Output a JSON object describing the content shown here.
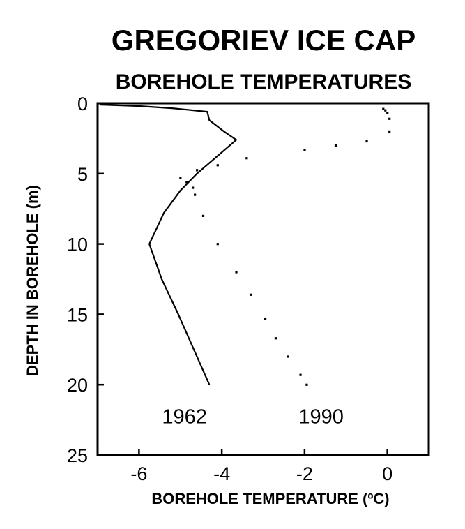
{
  "chart_data": {
    "type": "line",
    "title": "GREGORIEV ICE CAP",
    "subtitle": "BOREHOLE TEMPERATURES",
    "xlabel": "BOREHOLE TEMPERATURE (ºC)",
    "ylabel": "DEPTH IN BOREHOLE (m)",
    "xlim": [
      -7,
      1
    ],
    "ylim": [
      0,
      25
    ],
    "y_inverted": true,
    "grid": false,
    "x_ticks": [
      -6,
      -4,
      -2,
      0
    ],
    "x_tick_labels": [
      "-6",
      "-4",
      "-2",
      "0"
    ],
    "y_ticks": [
      0,
      5,
      10,
      15,
      20,
      25
    ],
    "y_tick_labels": [
      "0",
      "5",
      "10",
      "15",
      "20",
      "25"
    ],
    "series": [
      {
        "name": "1962",
        "style": "solid",
        "points": [
          [
            -6.95,
            0.1
          ],
          [
            -6.0,
            0.2
          ],
          [
            -5.2,
            0.35
          ],
          [
            -4.35,
            0.6
          ],
          [
            -4.3,
            1.2
          ],
          [
            -3.95,
            2.0
          ],
          [
            -3.65,
            2.6
          ],
          [
            -4.6,
            5.0
          ],
          [
            -5.0,
            6.2
          ],
          [
            -5.4,
            7.8
          ],
          [
            -5.75,
            10.0
          ],
          [
            -5.45,
            12.5
          ],
          [
            -5.05,
            15.0
          ],
          [
            -4.3,
            20.0
          ]
        ]
      },
      {
        "name": "1990",
        "style": "dotted",
        "points": [
          [
            -0.1,
            0.4
          ],
          [
            -0.05,
            0.5
          ],
          [
            0.0,
            0.7
          ],
          [
            0.05,
            1.1
          ],
          [
            0.05,
            2.0
          ],
          [
            -0.5,
            2.7
          ],
          [
            -1.25,
            3.0
          ],
          [
            -2.0,
            3.3
          ],
          [
            -3.4,
            3.9
          ],
          [
            -4.1,
            4.4
          ],
          [
            -4.6,
            4.75
          ],
          [
            -5.0,
            5.3
          ],
          [
            -4.85,
            5.6
          ],
          [
            -4.7,
            6.0
          ],
          [
            -4.65,
            6.5
          ],
          [
            -4.45,
            8.0
          ],
          [
            -4.1,
            10.0
          ],
          [
            -3.65,
            12.0
          ],
          [
            -3.3,
            13.6
          ],
          [
            -2.95,
            15.3
          ],
          [
            -2.7,
            16.7
          ],
          [
            -2.4,
            18.0
          ],
          [
            -2.1,
            19.3
          ],
          [
            -1.95,
            20.0
          ]
        ]
      }
    ],
    "annotations": [
      {
        "text": "1962",
        "x": -4.9,
        "y": 22.2
      },
      {
        "text": "1990",
        "x": -1.6,
        "y": 22.2
      }
    ]
  }
}
